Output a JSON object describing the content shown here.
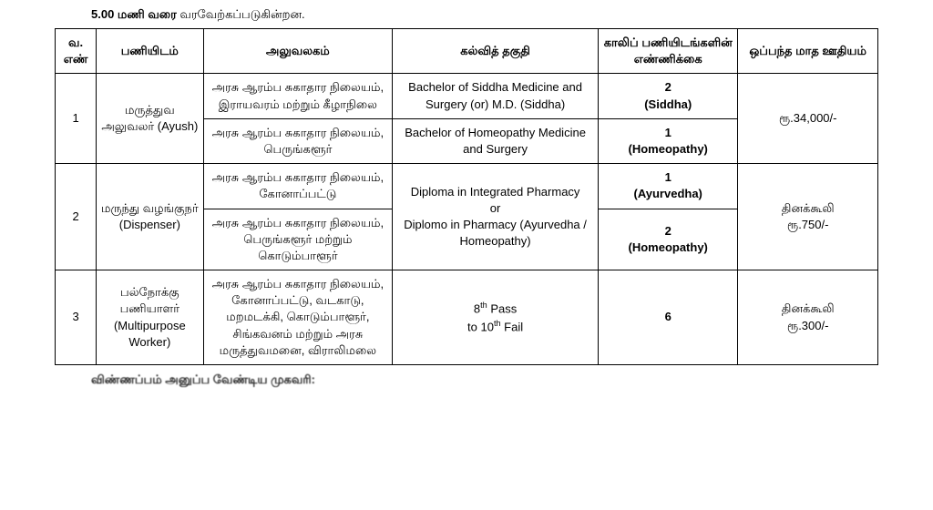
{
  "top_note_bold": "5.00 மணி வரை",
  "top_note_rest": " வரவேற்கப்படுகின்றன.",
  "headers": {
    "sno": "வ. எண்",
    "post": "பணியிடம்",
    "office": "அலுவலகம்",
    "qual": "கல்வித் தகுதி",
    "vac": "காலிப் பணியிடங்களின் எண்ணிக்கை",
    "pay": "ஒப்பந்த மாத ஊதியம்"
  },
  "rows": {
    "r1": {
      "sno": "1",
      "post": "மருத்துவ அலுவலர் (Ayush)",
      "office_a": "அரசு ஆரம்ப சுகாதார நிலையம், இராயவரம் மற்றும் கீழாநிலை",
      "qual_a": "Bachelor of Siddha Medicine and Surgery (or) M.D. (Siddha)",
      "vac_a_num": "2",
      "vac_a_lbl": "(Siddha)",
      "office_b": "அரசு ஆரம்ப சுகாதார நிலையம், பெருங்களூர்",
      "qual_b": "Bachelor of Homeopathy Medicine and Surgery",
      "vac_b_num": "1",
      "vac_b_lbl": "(Homeopathy)",
      "pay": "ரூ.34,000/-"
    },
    "r2": {
      "sno": "2",
      "post": "மருந்து வழங்குநர் (Dispenser)",
      "office_a": "அரசு ஆரம்ப சுகாதார நிலையம், கோனாப்பட்டு",
      "qual_top": "Diploma in Integrated Pharmacy",
      "qual_or": "or",
      "qual_bot": "Diplomo in Pharmacy (Ayurvedha / Homeopathy)",
      "vac_a_num": "1",
      "vac_a_lbl": "(Ayurvedha)",
      "office_b": "அரசு ஆரம்ப சுகாதார நிலையம், பெருங்களூர் மற்றும் கொடும்பாளூர்",
      "vac_b_num": "2",
      "vac_b_lbl": "(Homeopathy)",
      "pay_line1": "தினக்கூலி",
      "pay_line2": "ரூ.750/-"
    },
    "r3": {
      "sno": "3",
      "post": "பல்நோக்கு பணியாளர் (Multipurpose Worker)",
      "office": "அரசு ஆரம்ப சுகாதார நிலையம், கோனாப்பட்டு, வடகாடு, மறமடக்கி, கொடும்பாளூர், சிங்கவனம் மற்றும் அரசு மருத்துவமனை, விராலிமலை",
      "qual_a": "8",
      "qual_a_sup": "th",
      "qual_a_rest": " Pass",
      "qual_b": "to 10",
      "qual_b_sup": "th",
      "qual_b_rest": " Fail",
      "vac": "6",
      "pay_line1": "தினக்கூலி",
      "pay_line2": "ரூ.300/-"
    }
  },
  "bottom_note": "விண்ணப்பம் அனுப்ப வேண்டிய முகவரி:"
}
